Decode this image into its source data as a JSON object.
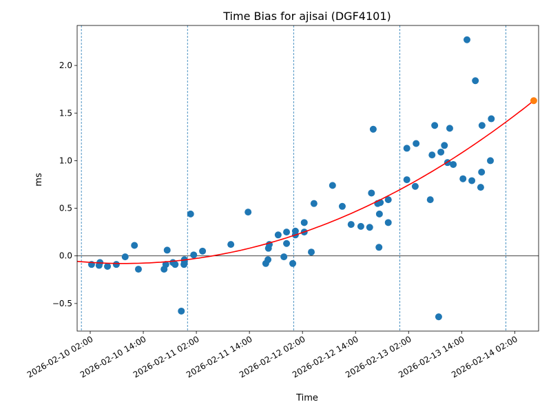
{
  "chart_data": {
    "type": "scatter",
    "title": "Time Bias for ajisai (DGF4101)",
    "xlabel": "Time",
    "ylabel": "ms",
    "x_unit": "hours since 2026-02-10 00:00",
    "xlim": [
      -0.96,
      103.4
    ],
    "ylim": [
      -0.79,
      2.42
    ],
    "xticks": [
      {
        "value": 2,
        "label": "2026-02-10 02:00"
      },
      {
        "value": 14,
        "label": "2026-02-10 14:00"
      },
      {
        "value": 26,
        "label": "2026-02-11 02:00"
      },
      {
        "value": 38,
        "label": "2026-02-11 14:00"
      },
      {
        "value": 50,
        "label": "2026-02-12 02:00"
      },
      {
        "value": 62,
        "label": "2026-02-12 14:00"
      },
      {
        "value": 74,
        "label": "2026-02-13 02:00"
      },
      {
        "value": 86,
        "label": "2026-02-13 14:00"
      },
      {
        "value": 98,
        "label": "2026-02-14 02:00"
      }
    ],
    "yticks": [
      {
        "value": -0.5,
        "label": "−0.5"
      },
      {
        "value": 0.0,
        "label": "0.0"
      },
      {
        "value": 0.5,
        "label": "0.5"
      },
      {
        "value": 1.0,
        "label": "1.0"
      },
      {
        "value": 1.5,
        "label": "1.5"
      },
      {
        "value": 2.0,
        "label": "2.0"
      }
    ],
    "day_boundaries": [
      0,
      24,
      48,
      72,
      96
    ],
    "zero_line": 0,
    "series": [
      {
        "name": "time bias",
        "color": "#1f77b4",
        "points": [
          [
            2.3,
            -0.09
          ],
          [
            4.2,
            -0.07
          ],
          [
            4.0,
            -0.1
          ],
          [
            5.9,
            -0.11
          ],
          [
            7.9,
            -0.09
          ],
          [
            9.9,
            -0.01
          ],
          [
            12.0,
            0.11
          ],
          [
            12.9,
            -0.14
          ],
          [
            18.7,
            -0.14
          ],
          [
            19.1,
            -0.09
          ],
          [
            19.4,
            0.06
          ],
          [
            20.7,
            -0.07
          ],
          [
            21.2,
            -0.09
          ],
          [
            22.6,
            -0.58
          ],
          [
            23.2,
            -0.09
          ],
          [
            23.3,
            -0.06
          ],
          [
            23.3,
            -0.04
          ],
          [
            24.7,
            0.44
          ],
          [
            25.4,
            0.01
          ],
          [
            27.4,
            0.05
          ],
          [
            33.8,
            0.12
          ],
          [
            37.7,
            0.46
          ],
          [
            41.7,
            -0.08
          ],
          [
            42.2,
            -0.04
          ],
          [
            42.3,
            0.08
          ],
          [
            42.5,
            0.12
          ],
          [
            44.5,
            0.22
          ],
          [
            45.8,
            -0.01
          ],
          [
            46.4,
            0.25
          ],
          [
            46.4,
            0.13
          ],
          [
            47.8,
            -0.08
          ],
          [
            48.4,
            0.26
          ],
          [
            48.4,
            0.22
          ],
          [
            50.4,
            0.35
          ],
          [
            50.4,
            0.25
          ],
          [
            52.0,
            0.04
          ],
          [
            52.6,
            0.55
          ],
          [
            56.8,
            0.74
          ],
          [
            59.0,
            0.52
          ],
          [
            61.0,
            0.33
          ],
          [
            63.2,
            0.31
          ],
          [
            65.2,
            0.3
          ],
          [
            65.6,
            0.66
          ],
          [
            66.0,
            1.33
          ],
          [
            67.0,
            0.55
          ],
          [
            67.6,
            0.56
          ],
          [
            67.3,
            0.09
          ],
          [
            67.4,
            0.44
          ],
          [
            69.4,
            0.35
          ],
          [
            69.4,
            0.59
          ],
          [
            73.6,
            0.8
          ],
          [
            73.6,
            1.13
          ],
          [
            75.5,
            0.73
          ],
          [
            75.7,
            1.18
          ],
          [
            78.9,
            0.59
          ],
          [
            79.3,
            1.06
          ],
          [
            79.9,
            1.37
          ],
          [
            80.8,
            -0.64
          ],
          [
            81.3,
            1.09
          ],
          [
            82.1,
            1.16
          ],
          [
            82.8,
            0.98
          ],
          [
            83.3,
            1.34
          ],
          [
            84.1,
            0.96
          ],
          [
            86.3,
            0.81
          ],
          [
            87.2,
            2.27
          ],
          [
            88.3,
            0.79
          ],
          [
            89.1,
            1.84
          ],
          [
            90.3,
            0.72
          ],
          [
            90.5,
            0.88
          ],
          [
            90.6,
            1.37
          ],
          [
            92.5,
            1.0
          ],
          [
            92.7,
            1.44
          ]
        ]
      }
    ],
    "fit": {
      "type": "quadratic",
      "color": "#ff0000",
      "a": 0.000199,
      "vertex_x": 9.6,
      "vertex_y": -0.08,
      "x_range": [
        -0.96,
        102.3
      ]
    },
    "prediction": {
      "x": 102.3,
      "y": 1.63,
      "color": "#ff7f0e"
    }
  }
}
